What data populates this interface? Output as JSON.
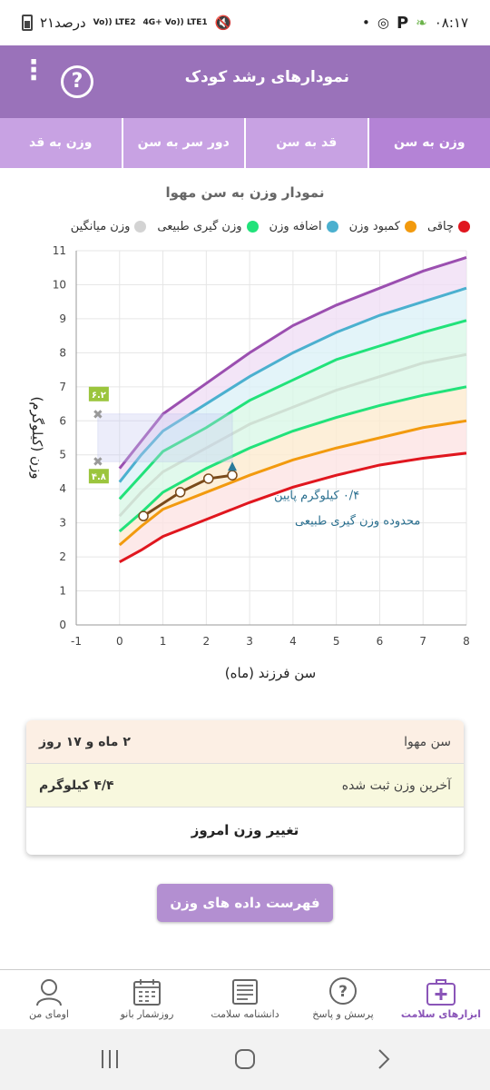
{
  "status_bar": {
    "time": "۰۸:۱۷",
    "battery": "۲۱درصد",
    "sig1": "Vo)) LTE2",
    "sig2": "4G+ Vo)) LTE1"
  },
  "app_bar": {
    "title": "نمودارهای رشد کودک"
  },
  "tabs": [
    {
      "label": "وزن به سن",
      "active": true
    },
    {
      "label": "قد به سن",
      "active": false
    },
    {
      "label": "دور سر به سن",
      "active": false
    },
    {
      "label": "وزن به قد",
      "active": false
    }
  ],
  "chart_title": "نمودار وزن به سن مهوا",
  "legend": [
    {
      "label": "چاقی",
      "color": "#e0161e"
    },
    {
      "label": "کمبود وزن",
      "color": "#f29a0e"
    },
    {
      "label": "اضافه وزن",
      "color": "#4bb0cf"
    },
    {
      "label": "وزن گیری طبیعی",
      "color": "#21e27a"
    },
    {
      "label": "وزن میانگین",
      "color": "#d3d3d3"
    }
  ],
  "chart_data": {
    "type": "line",
    "xlabel": "سن فرزند (ماه)",
    "ylabel": "وزن (کیلوگرم)",
    "xlim": [
      -1,
      8
    ],
    "ylim": [
      0,
      11
    ],
    "x_ticks": [
      "-1",
      "0",
      "1",
      "2",
      "3",
      "4",
      "5",
      "6",
      "7",
      "8"
    ],
    "y_ticks": [
      "0",
      "1",
      "2",
      "3",
      "4",
      "5",
      "6",
      "7",
      "8",
      "9",
      "10",
      "11"
    ],
    "x": [
      0,
      0.5,
      1,
      2,
      3,
      4,
      5,
      6,
      7,
      8
    ],
    "series": [
      {
        "key": "obese",
        "color": "#9b4fb0",
        "values": [
          4.6,
          5.4,
          6.2,
          7.1,
          8.0,
          8.8,
          9.4,
          9.9,
          10.4,
          10.8
        ]
      },
      {
        "key": "over",
        "color": "#4bb0cf",
        "values": [
          4.2,
          5.0,
          5.7,
          6.5,
          7.3,
          8.0,
          8.6,
          9.1,
          9.5,
          9.9
        ]
      },
      {
        "key": "normal_high",
        "color": "#21e27a",
        "values": [
          3.7,
          4.4,
          5.1,
          5.8,
          6.6,
          7.2,
          7.8,
          8.2,
          8.6,
          8.95
        ]
      },
      {
        "key": "average",
        "color": "#cfe0d4",
        "values": [
          3.2,
          3.9,
          4.5,
          5.2,
          5.9,
          6.4,
          6.9,
          7.3,
          7.7,
          7.95
        ]
      },
      {
        "key": "normal_low",
        "color": "#21e27a",
        "values": [
          2.75,
          3.3,
          3.9,
          4.6,
          5.2,
          5.7,
          6.1,
          6.45,
          6.75,
          7.0
        ]
      },
      {
        "key": "under",
        "color": "#f29a0e",
        "values": [
          2.35,
          2.9,
          3.4,
          3.9,
          4.4,
          4.85,
          5.2,
          5.5,
          5.8,
          6.0
        ]
      },
      {
        "key": "severe",
        "color": "#e0161e",
        "values": [
          1.85,
          2.2,
          2.6,
          3.1,
          3.6,
          4.05,
          4.4,
          4.7,
          4.9,
          5.05
        ]
      }
    ],
    "child_points": [
      {
        "x": 0.55,
        "y": 3.2
      },
      {
        "x": 1.4,
        "y": 3.9
      },
      {
        "x": 2.05,
        "y": 4.3
      },
      {
        "x": 2.6,
        "y": 4.4
      }
    ],
    "annotations": {
      "line1": "۰/۴ کیلوگرم پایین",
      "line2": "محدوده وزن گیری طبیعی",
      "range_high": "۶.۲",
      "range_low": "۴.۸",
      "range_high_value": 6.2,
      "range_low_value": 4.8,
      "range_age": 2.6
    }
  },
  "info": {
    "age_label": "سن مهوا",
    "age_value": "۲ ماه و ۱۷ روز",
    "weight_label": "آخرین وزن ثبت شده",
    "weight_value": "۴/۴ کیلوگرم",
    "change_weight": "تغییر وزن امروز"
  },
  "data_list_button": "فهرست داده های وزن مهوا",
  "bottom_nav": [
    {
      "label": "ابزارهای سلامت",
      "icon": "medical-kit-icon",
      "active": true
    },
    {
      "label": "پرسش و پاسخ",
      "icon": "question-bubble-icon",
      "active": false
    },
    {
      "label": "دانشنامه سلامت",
      "icon": "newspaper-icon",
      "active": false
    },
    {
      "label": "روزشمار بانو",
      "icon": "calendar-icon",
      "active": false
    },
    {
      "label": "اومای من",
      "icon": "profile-icon",
      "active": false
    }
  ]
}
